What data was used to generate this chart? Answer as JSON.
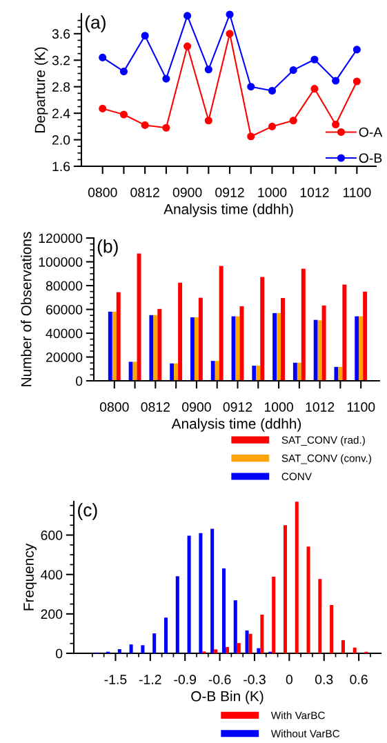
{
  "chart_data": [
    {
      "type": "line",
      "annotations": [
        "(a)"
      ],
      "xlabel": "Analysis time (ddhh)",
      "ylabel": "Departure (K)",
      "categories": [
        "0800",
        null,
        "0812",
        null,
        "0900",
        null,
        "0912",
        null,
        "1000",
        null,
        "1012",
        null,
        "1100"
      ],
      "series": [
        {
          "name": "O-A",
          "color": "#ff0000",
          "values": [
            2.47,
            2.38,
            2.22,
            2.18,
            3.41,
            2.29,
            3.6,
            2.05,
            2.2,
            2.29,
            2.77,
            2.23,
            2.88
          ]
        },
        {
          "name": "O-B",
          "color": "#0000ff",
          "values": [
            3.24,
            3.03,
            3.57,
            2.92,
            3.87,
            3.06,
            3.89,
            2.8,
            2.74,
            3.05,
            3.21,
            2.89,
            3.36
          ]
        }
      ],
      "ylim": [
        1.6,
        3.9
      ],
      "yticks": [
        {
          "value": 1.6,
          "label": "1.6"
        },
        {
          "value": 1.7,
          "label": null
        },
        {
          "value": 1.8,
          "label": null
        },
        {
          "value": 1.9,
          "label": null
        },
        {
          "value": 2.0,
          "label": "2.0"
        },
        {
          "value": 2.1,
          "label": null
        },
        {
          "value": 2.2,
          "label": null
        },
        {
          "value": 2.3,
          "label": null
        },
        {
          "value": 2.4,
          "label": "2.4"
        },
        {
          "value": 2.5,
          "label": null
        },
        {
          "value": 2.6,
          "label": null
        },
        {
          "value": 2.7,
          "label": null
        },
        {
          "value": 2.8,
          "label": "2.8"
        },
        {
          "value": 2.9,
          "label": null
        },
        {
          "value": 3.0,
          "label": null
        },
        {
          "value": 3.1,
          "label": null
        },
        {
          "value": 3.2,
          "label": "3.2"
        },
        {
          "value": 3.3,
          "label": null
        },
        {
          "value": 3.4,
          "label": null
        },
        {
          "value": 3.5,
          "label": null
        },
        {
          "value": 3.6,
          "label": "3.6"
        },
        {
          "value": 3.7,
          "label": null
        },
        {
          "value": 3.8,
          "label": null
        }
      ],
      "marker": "circle",
      "line_style": "solid",
      "legend": "bottom right",
      "grid": false
    },
    {
      "type": "bar",
      "annotations": [
        "(b)"
      ],
      "xlabel": "Analysis time (ddhh)",
      "ylabel": "Number of Observations",
      "categories": [
        "0800",
        null,
        "0812",
        null,
        "0900",
        null,
        "0912",
        null,
        "1000",
        null,
        "1012",
        null,
        "1100"
      ],
      "series": [
        {
          "name": "CONV",
          "color": "#0000ff",
          "values": [
            58100,
            16000,
            55200,
            14600,
            53300,
            16700,
            54200,
            12700,
            56900,
            15200,
            51200,
            11700,
            54200
          ]
        },
        {
          "name": "SAT_CONV (conv.)",
          "color": "#ffa500",
          "values": [
            58100,
            16000,
            55200,
            14600,
            53300,
            16700,
            54200,
            12700,
            56900,
            15200,
            50800,
            11700,
            54200
          ]
        },
        {
          "name": "SAT_CONV (rad.)",
          "color": "#ff0000",
          "values": [
            74500,
            106900,
            60400,
            82500,
            69800,
            96500,
            62700,
            87300,
            69600,
            94200,
            63300,
            80800,
            75000
          ]
        }
      ],
      "ylim": [
        0,
        120000
      ],
      "yticks": [
        0,
        {
          "value": 5000,
          "label": null
        },
        {
          "value": 10000,
          "label": null
        },
        {
          "value": 15000,
          "label": null
        },
        20000,
        {
          "value": 25000,
          "label": null
        },
        {
          "value": 30000,
          "label": null
        },
        {
          "value": 35000,
          "label": null
        },
        40000,
        {
          "value": 45000,
          "label": null
        },
        {
          "value": 50000,
          "label": null
        },
        {
          "value": 55000,
          "label": null
        },
        60000,
        {
          "value": 65000,
          "label": null
        },
        {
          "value": 70000,
          "label": null
        },
        {
          "value": 75000,
          "label": null
        },
        80000,
        {
          "value": 85000,
          "label": null
        },
        {
          "value": 90000,
          "label": null
        },
        {
          "value": 95000,
          "label": null
        },
        100000,
        {
          "value": 105000,
          "label": null
        },
        {
          "value": 110000,
          "label": null
        },
        {
          "value": 115000,
          "label": null
        },
        120000
      ],
      "legend": "bottom",
      "grid": false
    },
    {
      "type": "histogram",
      "annotations": [
        "(c)"
      ],
      "xlabel": "O-B Bin (K)",
      "ylabel": "Frequency",
      "bins": [
        -1.7,
        -1.6,
        -1.5,
        -1.4,
        -1.3,
        -1.2,
        -1.1,
        -1.0,
        -0.9,
        -0.8,
        -0.7,
        -0.6,
        -0.5,
        -0.4,
        -0.3,
        -0.2,
        -0.1,
        0.0,
        0.1,
        0.2,
        0.3,
        0.4,
        0.5,
        0.6,
        0.7
      ],
      "series": [
        {
          "name": "Without VarBC",
          "color": "#0000ff",
          "values": [
            4,
            8,
            21,
            45,
            41,
            101,
            181,
            391,
            597,
            610,
            632,
            431,
            269,
            116,
            26,
            8,
            0,
            0,
            0,
            0,
            0,
            0,
            0,
            0
          ]
        },
        {
          "name": "With VarBC",
          "color": "#ff0000",
          "values": [
            0,
            0,
            0,
            0,
            0,
            0,
            0,
            0,
            0,
            9,
            20,
            32,
            52,
            99,
            196,
            389,
            650,
            769,
            542,
            377,
            245,
            67,
            29,
            8
          ]
        }
      ],
      "xlim": [
        -1.86,
        0.79
      ],
      "ylim": [
        0,
        770
      ],
      "xticks": [
        {
          "value": -1.7,
          "label": null
        },
        {
          "value": -1.6,
          "label": null
        },
        -1.5,
        {
          "value": -1.4,
          "label": null
        },
        {
          "value": -1.3,
          "label": null
        },
        -1.2,
        {
          "value": -1.1,
          "label": null
        },
        {
          "value": -1.0,
          "label": null
        },
        -0.9,
        {
          "value": -0.8,
          "label": null
        },
        {
          "value": -0.7,
          "label": null
        },
        -0.6,
        {
          "value": -0.5,
          "label": null
        },
        {
          "value": -0.4,
          "label": null
        },
        -0.3,
        {
          "value": -0.2,
          "label": null
        },
        {
          "value": -0.1,
          "label": null
        },
        0,
        {
          "value": 0.1,
          "label": null
        },
        {
          "value": 0.2,
          "label": null
        },
        0.3,
        {
          "value": 0.4,
          "label": null
        },
        {
          "value": 0.5,
          "label": null
        },
        0.6,
        {
          "value": 0.7,
          "label": null
        }
      ],
      "yticks": [
        0,
        {
          "value": 50,
          "label": null
        },
        {
          "value": 100,
          "label": null
        },
        {
          "value": 150,
          "label": null
        },
        200,
        {
          "value": 250,
          "label": null
        },
        {
          "value": 300,
          "label": null
        },
        {
          "value": 350,
          "label": null
        },
        400,
        {
          "value": 450,
          "label": null
        },
        {
          "value": 500,
          "label": null
        },
        {
          "value": 550,
          "label": null
        },
        600,
        {
          "value": 650,
          "label": null
        },
        {
          "value": 700,
          "label": null
        },
        {
          "value": 750,
          "label": null
        }
      ],
      "legend": "bottom",
      "grid": false
    }
  ]
}
